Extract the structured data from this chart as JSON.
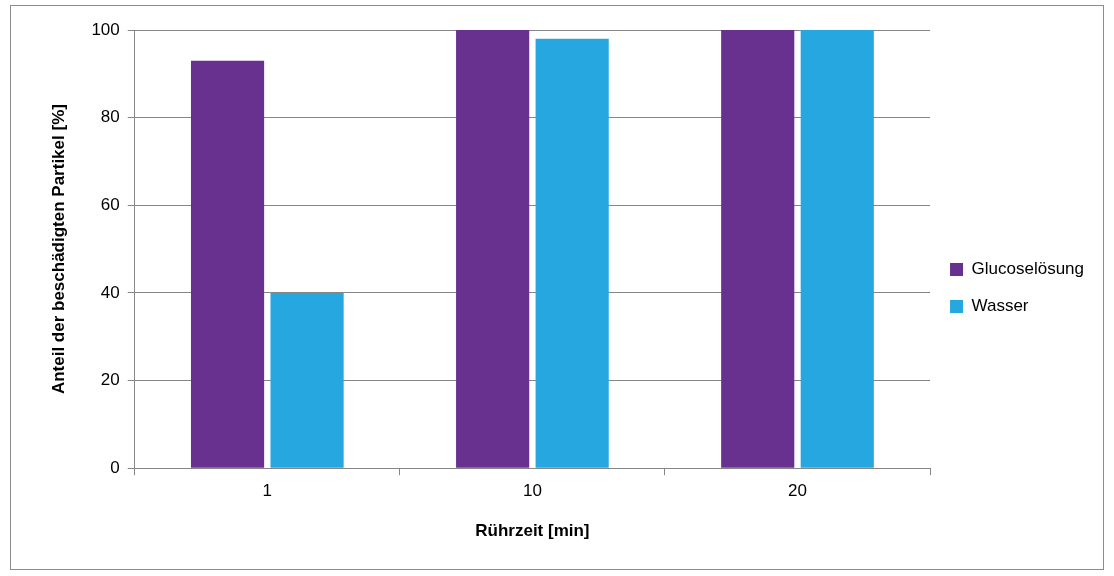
{
  "chart_data": {
    "type": "bar",
    "xlabel": "Rührzeit [min]",
    "ylabel": "Anteil der beschädigten Partikel [%]",
    "categories": [
      "1",
      "10",
      "20"
    ],
    "series": [
      {
        "name": "Glucoselösung",
        "color": "#68318f",
        "values": [
          93,
          100,
          100
        ]
      },
      {
        "name": "Wasser",
        "color": "#27a7df",
        "values": [
          40,
          98,
          100
        ]
      }
    ],
    "ylim": [
      0,
      100
    ],
    "yticks": [
      0,
      20,
      40,
      60,
      80,
      100
    ],
    "grid": "y",
    "legend": "right"
  }
}
